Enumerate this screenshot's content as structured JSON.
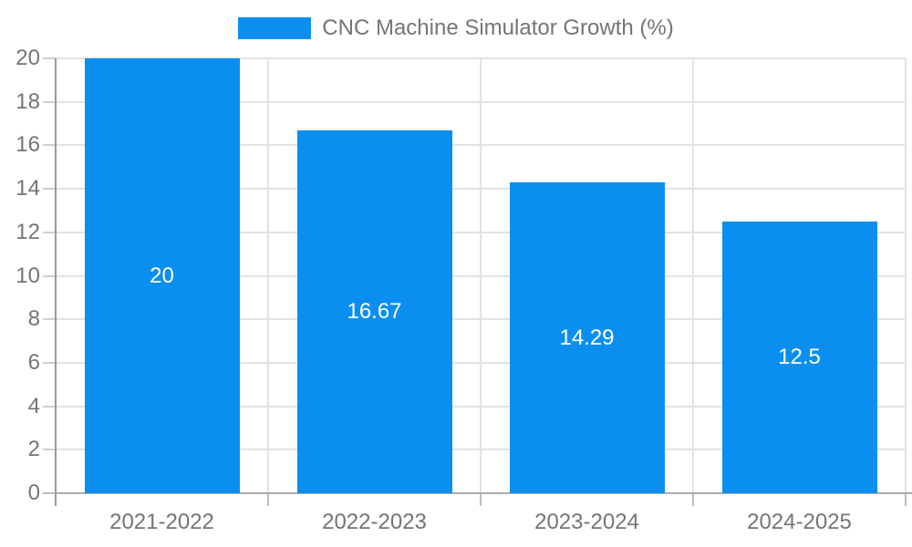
{
  "chart_data": {
    "type": "bar",
    "title": "CNC Machine Simulator Growth (%)",
    "categories": [
      "2021-2022",
      "2022-2023",
      "2023-2024",
      "2024-2025"
    ],
    "values": [
      20,
      16.67,
      14.29,
      12.5
    ],
    "value_labels": [
      "20",
      "16.67",
      "14.29",
      "12.5"
    ],
    "xlabel": "",
    "ylabel": "",
    "ylim": [
      0,
      20
    ],
    "yticks": [
      0,
      2,
      4,
      6,
      8,
      10,
      12,
      14,
      16,
      18,
      20
    ],
    "ytick_labels": [
      "0",
      "2",
      "4",
      "6",
      "8",
      "10",
      "12",
      "14",
      "16",
      "18",
      "20"
    ],
    "grid": true,
    "legend_position": "top-center",
    "colors": {
      "bar": "#0a8ff0",
      "value_label": "#ffffff",
      "axis_text": "#757575",
      "gridline": "#e2e2e2",
      "y_axis_line": "#9a9a9a",
      "baseline": "#adadad",
      "tick": "#bdbdbd"
    }
  }
}
